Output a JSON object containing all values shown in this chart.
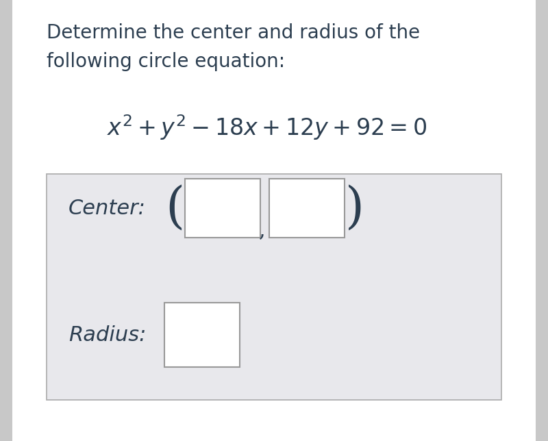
{
  "title_line1": "Determine the center and radius of the",
  "title_line2": "following circle equation:",
  "equation": "$x^2 + y^2 - 18x + 12y + 92 = 0$",
  "center_label": "Center:",
  "radius_label": "Radius:",
  "bg_color": "#ffffff",
  "outer_bg": "#c8c8c8",
  "box_bg": "#e8e8ec",
  "box_border": "#aaaaaa",
  "input_box_color": "#ffffff",
  "input_box_border": "#999999",
  "text_color": "#2c3e50",
  "title_fontsize": 20,
  "eq_fontsize": 24,
  "label_fontsize": 22,
  "paren_fontsize": 52
}
